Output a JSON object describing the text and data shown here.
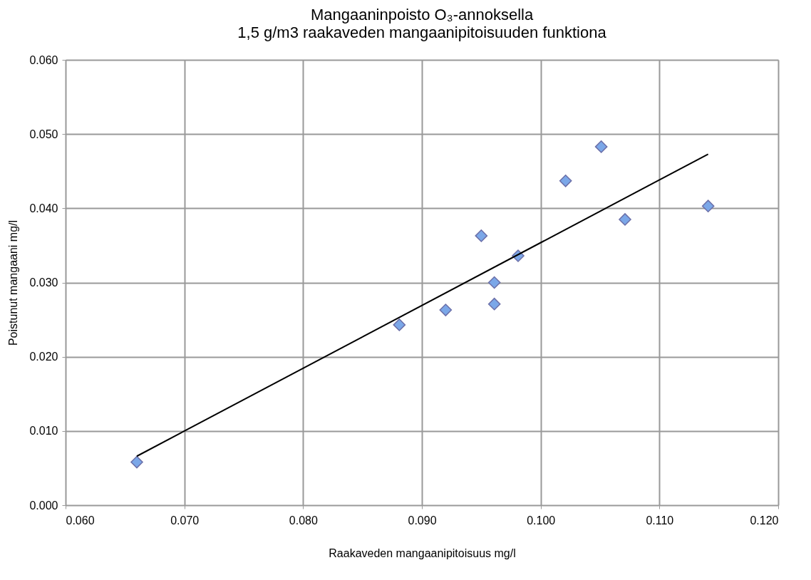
{
  "chart_data": {
    "type": "scatter",
    "title": "Mangaaninpoisto O₃-annoksella",
    "subtitle": "1,5 g/m3 raakaveden mangaanipitoisuuden funktiona",
    "xlabel": "Raakaveden mangaanipitoisuus mg/l",
    "ylabel": "Poistunut mangaani mg/l",
    "series": [
      {
        "color": "#7ba7e8",
        "marker": "diamond",
        "x": [
          0.066,
          0.0881,
          0.092,
          0.0961,
          0.0961,
          0.095,
          0.0981,
          0.1021,
          0.1051,
          0.1071,
          0.1141
        ],
        "values": [
          0.0058,
          0.0243,
          0.0263,
          0.0271,
          0.03,
          0.0363,
          0.0336,
          0.0437,
          0.0483,
          0.0385,
          0.0403
        ]
      },
      {
        "type": "line",
        "color": "#000000",
        "marker": "none",
        "line_style": "solid",
        "x": [
          0.066,
          0.1141
        ],
        "values": [
          0.0066,
          0.0473
        ]
      }
    ],
    "xlim": [
      0.06,
      0.12
    ],
    "xticks": [
      {
        "value": 0.06,
        "label": "0.060"
      },
      {
        "value": 0.07,
        "label": "0.070"
      },
      {
        "value": 0.08,
        "label": "0.080"
      },
      {
        "value": 0.09,
        "label": "0.090"
      },
      {
        "value": 0.1,
        "label": "0.100"
      },
      {
        "value": 0.11,
        "label": "0.110"
      },
      {
        "value": 0.12,
        "label": "0.120"
      }
    ],
    "ylim": [
      0,
      0.06
    ],
    "yticks": [
      {
        "value": 0,
        "label": "0.000"
      },
      {
        "value": 0.01,
        "label": "0.010"
      },
      {
        "value": 0.02,
        "label": "0.020"
      },
      {
        "value": 0.03,
        "label": "0.030"
      },
      {
        "value": 0.04,
        "label": "0.040"
      },
      {
        "value": 0.05,
        "label": "0.050"
      },
      {
        "value": 0.06,
        "label": "0.060"
      }
    ],
    "grid": true
  }
}
